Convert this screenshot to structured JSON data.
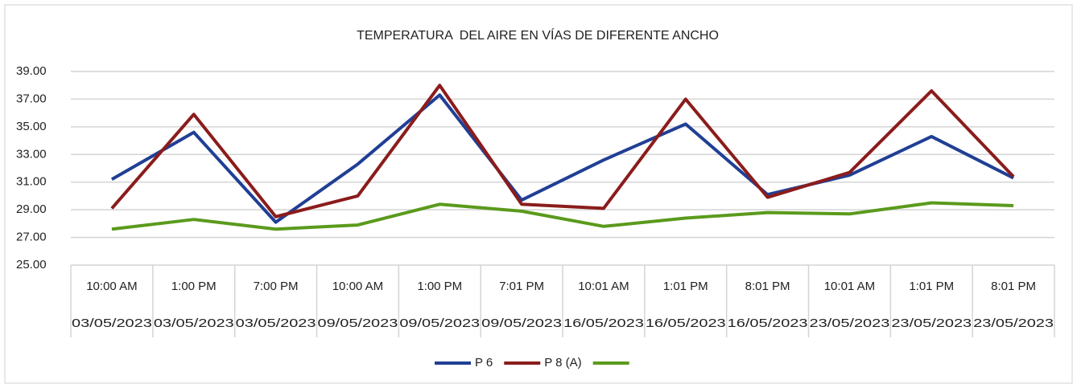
{
  "chart_data": {
    "type": "line",
    "title": "TEMPERATURA  DEL AIRE EN VÍAS DE DIFERENTE ANCHO",
    "categories": [
      [
        "10:00 AM",
        "03/05/2023"
      ],
      [
        "1:00 PM",
        "03/05/2023"
      ],
      [
        "7:00 PM",
        "03/05/2023"
      ],
      [
        "10:00 AM",
        "09/05/2023"
      ],
      [
        "1:00 PM",
        "09/05/2023"
      ],
      [
        "7:01 PM",
        "09/05/2023"
      ],
      [
        "10:01 AM",
        "16/05/2023"
      ],
      [
        "1:01 PM",
        "16/05/2023"
      ],
      [
        "8:01 PM",
        "16/05/2023"
      ],
      [
        "10:01 AM",
        "23/05/2023"
      ],
      [
        "1:01 PM",
        "23/05/2023"
      ],
      [
        "8:01 PM",
        "23/05/2023"
      ]
    ],
    "series": [
      {
        "name": "P 6",
        "color": "#203f95",
        "values": [
          31.2,
          34.6,
          28.1,
          32.3,
          37.3,
          29.7,
          32.6,
          35.2,
          30.1,
          31.5,
          34.3,
          31.3
        ]
      },
      {
        "name": "P 8 (A)",
        "color": "#8b1c1c",
        "values": [
          29.1,
          35.9,
          28.5,
          30.0,
          38.0,
          29.4,
          29.1,
          37.0,
          29.9,
          31.7,
          37.6,
          31.4
        ]
      },
      {
        "color": "#5b9a1c",
        "values": [
          27.6,
          28.3,
          27.6,
          27.9,
          29.4,
          28.9,
          27.8,
          28.4,
          28.8,
          28.7,
          29.5,
          29.3
        ]
      }
    ],
    "ylim": [
      25,
      39
    ],
    "yticks": [
      {
        "value": 25,
        "label": "25.00"
      },
      {
        "value": 27,
        "label": "27.00"
      },
      {
        "value": 29,
        "label": "29.00"
      },
      {
        "value": 31,
        "label": "31.00"
      },
      {
        "value": 33,
        "label": "33.00"
      },
      {
        "value": 35,
        "label": "35.00"
      },
      {
        "value": 37,
        "label": "37.00"
      },
      {
        "value": 39,
        "label": "39.00"
      }
    ],
    "grid": true,
    "legend": "bottom"
  }
}
